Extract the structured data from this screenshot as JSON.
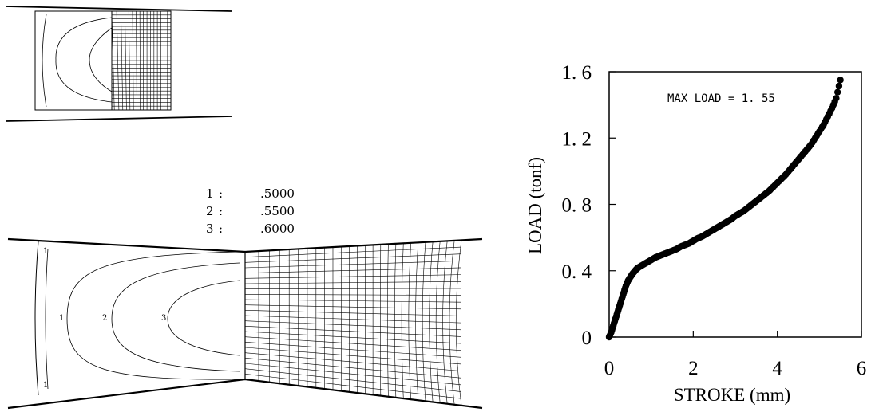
{
  "legend": [
    {
      "id": "1",
      "sep": ":",
      "value": ".5000"
    },
    {
      "id": "2",
      "sep": ":",
      "value": ".5500"
    },
    {
      "id": "3",
      "sep": ":",
      "value": ".6000"
    }
  ],
  "contour_labels": [
    "1",
    "1",
    "2",
    "3",
    "1"
  ],
  "chart_data": {
    "type": "scatter",
    "title": "",
    "xlabel": "STROKE  (mm)",
    "ylabel": "LOAD  (tonf)",
    "xlim": [
      0,
      6
    ],
    "ylim": [
      0,
      1.6
    ],
    "xticks": [
      0,
      2,
      4,
      6
    ],
    "xtick_labels": [
      "0",
      "2",
      "4",
      "6"
    ],
    "yticks": [
      0,
      0.4,
      0.8,
      1.2,
      1.6
    ],
    "ytick_labels": [
      "0",
      "0. 4",
      "0. 8",
      "1. 2",
      "1. 6"
    ],
    "annotation": "MAX LOAD = 1. 55",
    "grid": false,
    "series": [
      {
        "marker_color": "#000000",
        "x": [
          0,
          0.05,
          0.1,
          0.15,
          0.2,
          0.25,
          0.3,
          0.35,
          0.4,
          0.45,
          0.5,
          0.55,
          0.6,
          0.65,
          0.7,
          0.8,
          0.9,
          1.0,
          1.1,
          1.2,
          1.3,
          1.4,
          1.5,
          1.6,
          1.7,
          1.8,
          1.9,
          2.0,
          2.1,
          2.2,
          2.3,
          2.4,
          2.5,
          2.6,
          2.7,
          2.8,
          2.9,
          3.0,
          3.1,
          3.2,
          3.3,
          3.4,
          3.5,
          3.6,
          3.7,
          3.8,
          3.9,
          4.0,
          4.1,
          4.2,
          4.3,
          4.4,
          4.5,
          4.6,
          4.7,
          4.8,
          4.9,
          5.0,
          5.1,
          5.2,
          5.3,
          5.4,
          5.5
        ],
        "y": [
          0,
          0.03,
          0.07,
          0.11,
          0.15,
          0.19,
          0.23,
          0.27,
          0.31,
          0.34,
          0.36,
          0.38,
          0.395,
          0.41,
          0.42,
          0.435,
          0.45,
          0.465,
          0.48,
          0.49,
          0.5,
          0.51,
          0.52,
          0.53,
          0.545,
          0.555,
          0.565,
          0.58,
          0.595,
          0.605,
          0.62,
          0.635,
          0.65,
          0.665,
          0.68,
          0.695,
          0.71,
          0.73,
          0.745,
          0.76,
          0.78,
          0.8,
          0.82,
          0.84,
          0.86,
          0.88,
          0.905,
          0.93,
          0.955,
          0.98,
          1.01,
          1.04,
          1.07,
          1.1,
          1.13,
          1.16,
          1.2,
          1.24,
          1.28,
          1.33,
          1.38,
          1.44,
          1.55
        ]
      }
    ]
  }
}
